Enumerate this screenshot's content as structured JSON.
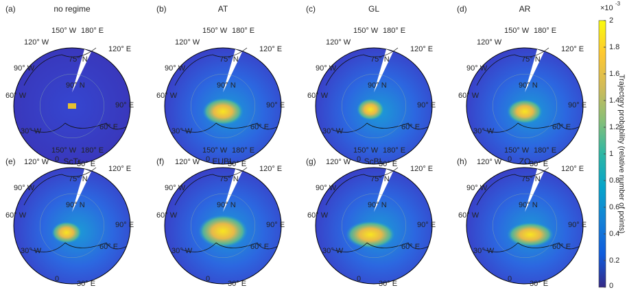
{
  "panels": [
    {
      "letter": "(a)",
      "title": "no regime"
    },
    {
      "letter": "(b)",
      "title": "AT"
    },
    {
      "letter": "(c)",
      "title": "GL"
    },
    {
      "letter": "(d)",
      "title": "AR"
    },
    {
      "letter": "(e)",
      "title": "ScTr"
    },
    {
      "letter": "(f)",
      "title": "EUBL"
    },
    {
      "letter": "(g)",
      "title": "ScBL"
    },
    {
      "letter": "(h)",
      "title": "ZO"
    }
  ],
  "map_labels": [
    "150° W",
    "180° E",
    "120° W",
    "120° E",
    "90° W",
    "75° N",
    "90° N",
    "60° W",
    "90° E",
    "30° W",
    "60° E",
    "0",
    "30° E"
  ],
  "colorbar": {
    "label": "Trajectory probability (relative number of points)",
    "multiplier": "×10",
    "exponent": "-3",
    "lim": [
      0,
      2
    ],
    "ticks": [
      0,
      0.2,
      0.4,
      0.6,
      0.8,
      1,
      1.2,
      1.4,
      1.6,
      1.8,
      2
    ],
    "colors": [
      "#352a87",
      "#0f5cdd",
      "#1481d6",
      "#06a4ca",
      "#2eb7a4",
      "#87bf77",
      "#d1bb59",
      "#fec832",
      "#f9fb0e"
    ]
  }
}
